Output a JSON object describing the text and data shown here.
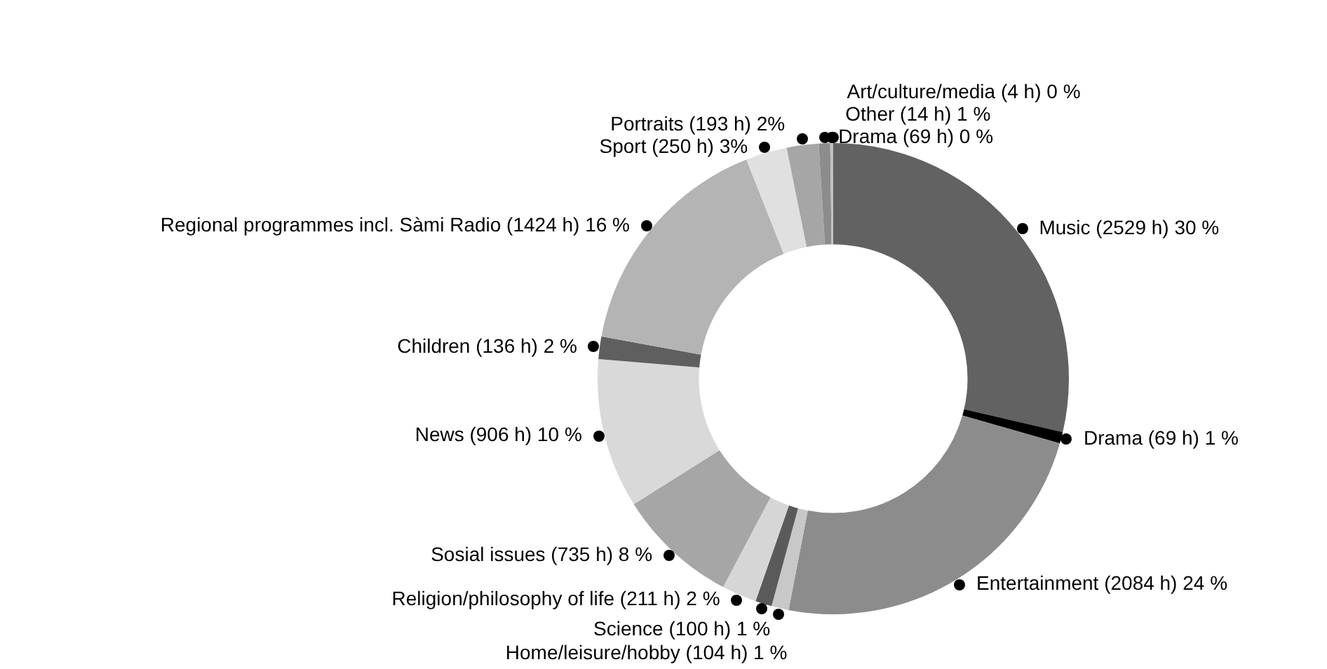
{
  "chart_data": {
    "type": "donut",
    "categories": [
      "Music (2529 h) 30 %",
      "Drama (69 h) 1 %",
      "Entertainment (2084 h) 24 %",
      "Home/leisure/hobby (104 h) 1 %",
      "Science (100 h) 1 %",
      "Religion/philosophy of life (211 h) 2 %",
      "Sosial issues (735 h) 8 %",
      "News (906 h) 10 %",
      "Children (136 h) 2 %",
      "Regional programmes incl. Sàmi Radio (1424 h) 16 %",
      "Sport (250 h) 3%",
      "Portraits (193 h) 2%",
      "Drama (69 h) 0 %",
      "Other (14 h) 1 %",
      "Art/culture/media (4 h) 0 %"
    ],
    "values": [
      2529,
      69,
      2084,
      104,
      100,
      211,
      735,
      906,
      136,
      1424,
      250,
      193,
      69,
      14,
      4
    ],
    "colors": [
      "#626262",
      "#000000",
      "#8c8c8c",
      "#c8c8c8",
      "#5a5a5a",
      "#d6d6d6",
      "#a6a6a6",
      "#d9d9d9",
      "#5f5f5f",
      "#b4b4b4",
      "#e0e0e0",
      "#a6a6a6",
      "#8c8c8c",
      "#c0c0c0",
      "#b4b4b4"
    ]
  }
}
